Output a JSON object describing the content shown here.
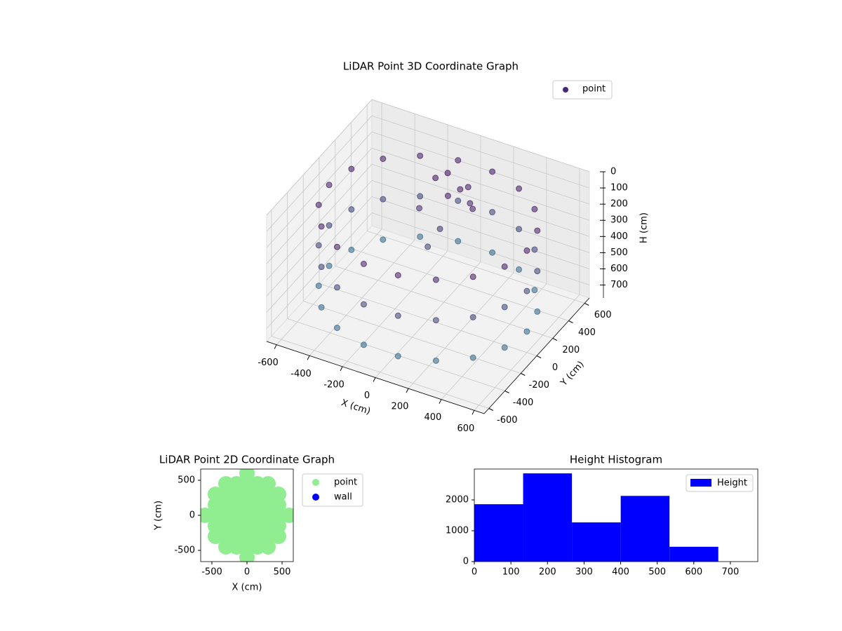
{
  "chart_data": [
    {
      "type": "scatter3d",
      "title": "LiDAR Point 3D Coordinate Graph",
      "xlabel": "X (cm)",
      "ylabel": "Y (cm)",
      "zlabel": "H (cm)",
      "xlim": [
        -660,
        660
      ],
      "ylim": [
        -660,
        660
      ],
      "zlim": [
        780,
        0
      ],
      "xticks": [
        -600,
        -400,
        -200,
        0,
        200,
        400,
        600
      ],
      "yticks": [
        -600,
        -400,
        -200,
        0,
        200,
        400,
        600
      ],
      "zticks": [
        0,
        100,
        200,
        300,
        400,
        500,
        600,
        700
      ],
      "grid": true,
      "legend_loc": "upper right",
      "color_range": [
        "#440154",
        "#2a788e"
      ],
      "series": [
        {
          "name": "point",
          "color": "#46287a",
          "x": [
            600,
            564,
            460,
            300,
            104,
            -104,
            -300,
            -460,
            -564,
            -600,
            -564,
            -460,
            -300,
            -104,
            104,
            300,
            460,
            564,
            600,
            564,
            460,
            300,
            104,
            -104,
            -300,
            -460,
            -564,
            -600,
            -564,
            -460,
            -300,
            -104,
            104,
            300,
            460,
            564,
            600,
            564,
            460,
            300,
            104,
            -104,
            -300,
            -460,
            -564,
            -600,
            -564,
            -460,
            -300,
            -104,
            104,
            300,
            460,
            564,
            -100,
            -50,
            0,
            50,
            100,
            -150,
            150,
            0,
            -50,
            50
          ],
          "y": [
            0,
            205,
            386,
            520,
            591,
            591,
            520,
            386,
            205,
            0,
            -205,
            -386,
            -520,
            -591,
            -591,
            -520,
            -386,
            -205,
            0,
            205,
            386,
            520,
            591,
            591,
            520,
            386,
            205,
            0,
            -205,
            -386,
            -520,
            -591,
            -591,
            -520,
            -386,
            -205,
            0,
            205,
            386,
            520,
            591,
            591,
            520,
            386,
            205,
            0,
            -205,
            -386,
            -520,
            -591,
            -591,
            -520,
            -386,
            -205,
            300,
            350,
            250,
            300,
            320,
            200,
            250,
            150,
            100,
            400
          ],
          "h": [
            150,
            150,
            150,
            150,
            150,
            150,
            150,
            150,
            150,
            150,
            150,
            150,
            150,
            150,
            150,
            150,
            150,
            150,
            400,
            400,
            400,
            400,
            400,
            400,
            400,
            400,
            400,
            400,
            400,
            400,
            400,
            400,
            400,
            400,
            400,
            400,
            650,
            650,
            650,
            650,
            650,
            650,
            650,
            650,
            650,
            650,
            650,
            650,
            650,
            650,
            650,
            650,
            650,
            650,
            100,
            80,
            150,
            120,
            200,
            250,
            180,
            300,
            400,
            160
          ]
        }
      ]
    },
    {
      "type": "scatter",
      "title": "LiDAR Point 2D Coordinate Graph",
      "xlabel": "X (cm)",
      "ylabel": "Y (cm)",
      "xlim": [
        -660,
        660
      ],
      "ylim": [
        -660,
        660
      ],
      "xticks": [
        -500,
        0,
        500
      ],
      "yticks": [
        -500,
        0,
        500
      ],
      "legend_loc": "outside upper right",
      "series": [
        {
          "name": "point",
          "color": "#90ee90",
          "x": [
            -600,
            -450,
            -450,
            -450,
            -450,
            -450,
            -300,
            -300,
            -300,
            -300,
            -300,
            -300,
            -300,
            -150,
            -150,
            -150,
            -150,
            -150,
            -150,
            -150,
            0,
            0,
            0,
            0,
            0,
            0,
            0,
            0,
            0,
            150,
            150,
            150,
            150,
            150,
            150,
            150,
            300,
            300,
            300,
            300,
            300,
            300,
            300,
            450,
            450,
            450,
            450,
            450,
            600
          ],
          "y": [
            0,
            -300,
            -150,
            0,
            150,
            300,
            -450,
            -300,
            -150,
            0,
            150,
            300,
            450,
            -450,
            -300,
            -150,
            0,
            150,
            300,
            450,
            -600,
            -450,
            -300,
            -150,
            0,
            150,
            300,
            450,
            600,
            -450,
            -300,
            -150,
            0,
            150,
            300,
            450,
            -450,
            -300,
            -150,
            0,
            150,
            300,
            450,
            -300,
            -150,
            0,
            150,
            300,
            0
          ]
        },
        {
          "name": "wall",
          "color": "#0000ff",
          "x": [],
          "y": []
        }
      ]
    },
    {
      "type": "histogram",
      "title": "Height Histogram",
      "name": "Height",
      "color": "#0000ff",
      "bins": [
        0,
        133.4,
        266.8,
        400.2,
        533.6,
        667
      ],
      "values": [
        1860,
        2860,
        1270,
        2130,
        480
      ],
      "xlim": [
        0,
        775
      ],
      "xticks": [
        0,
        100,
        200,
        300,
        400,
        500,
        600,
        700
      ],
      "ylim": [
        0,
        3000
      ],
      "yticks": [
        0,
        1000,
        2000
      ],
      "legend_loc": "upper right"
    }
  ]
}
